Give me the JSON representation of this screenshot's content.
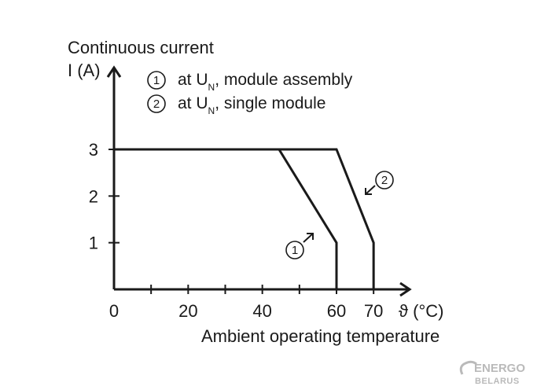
{
  "chart_data": {
    "type": "line",
    "title_lines": [
      "Continuous current",
      "I (A)"
    ],
    "xlabel": "Ambient operating temperature",
    "x_unit_label": "ϑ (°C)",
    "xlim": [
      0,
      80
    ],
    "ylim": [
      0,
      3.5
    ],
    "x_ticks": [
      0,
      20,
      40,
      60,
      70
    ],
    "x_minor_ticks": [
      10,
      30,
      50
    ],
    "y_ticks": [
      1,
      2,
      3
    ],
    "grid": false,
    "legend": [
      {
        "number": "1",
        "text_pre": "at U",
        "text_sub": "N",
        "text_post": ", module assembly"
      },
      {
        "number": "2",
        "text_pre": "at U",
        "text_sub": "N",
        "text_post": ", single module"
      }
    ],
    "series": [
      {
        "number": "1",
        "x": [
          0,
          44.5,
          60,
          60
        ],
        "y": [
          3,
          3,
          1,
          0
        ]
      },
      {
        "number": "2",
        "x": [
          0,
          60,
          70,
          70
        ],
        "y": [
          3,
          3,
          1,
          0
        ]
      }
    ]
  },
  "watermark": {
    "line1": "ENERGO",
    "line2": "BELARUS"
  }
}
